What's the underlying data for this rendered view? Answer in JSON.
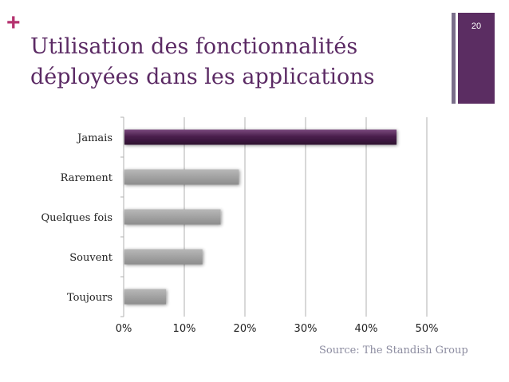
{
  "slide": {
    "plus_symbol": "+",
    "title_line1": "Utilisation des fonctionnalités",
    "title_line2": "déployées dans les applications",
    "page_number": "20",
    "source": "Source: The Standish Group"
  },
  "colors": {
    "accent": "#b5326f",
    "title": "#5b2a64",
    "highlight_bar": "#4a1f4d",
    "bar": "#a6a6a6",
    "grid": "#b0b0b0"
  },
  "chart_data": {
    "type": "bar",
    "orientation": "horizontal",
    "categories": [
      "Jamais",
      "Rarement",
      "Quelques fois",
      "Souvent",
      "Toujours"
    ],
    "values": [
      45,
      19,
      16,
      13,
      7
    ],
    "highlighted": "Jamais",
    "xlim": [
      0,
      50
    ],
    "xticks": [
      0,
      10,
      20,
      30,
      40,
      50
    ],
    "xtick_labels": [
      "0%",
      "10%",
      "20%",
      "30%",
      "40%",
      "50%"
    ],
    "grid": true,
    "title": "",
    "xlabel": "",
    "ylabel": ""
  }
}
